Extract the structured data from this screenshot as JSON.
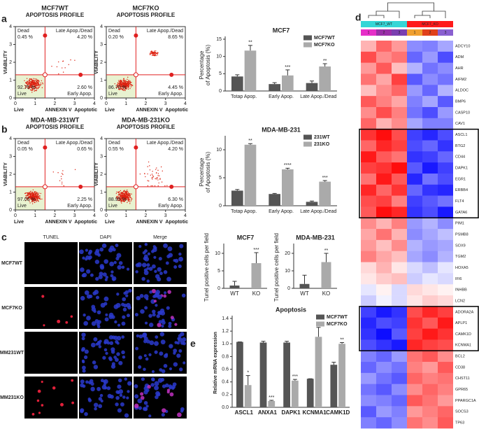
{
  "panel_letters": {
    "a": "a",
    "b": "b",
    "c": "c",
    "d": "d",
    "e": "e"
  },
  "flow_common": {
    "subtitle": "APOPTOSIS PROFILE",
    "y_label": "VIABILITY",
    "x_label": "ANNEXIN V",
    "x_left": "Live",
    "x_right": "Apoptotic",
    "dead": "Dead",
    "late": "Late Apop./Dead",
    "live": "Live",
    "early": "Early Apop.",
    "xticks": [
      0,
      1,
      2,
      3,
      4
    ],
    "yticks": [
      0,
      1,
      2,
      3,
      4
    ]
  },
  "flow_plots": [
    {
      "title": "MCF7WT",
      "dead": "0.45 %",
      "late": "4.20 %",
      "live": "92.75 %",
      "early": "2.60 %"
    },
    {
      "title": "MCF7KO",
      "dead": "0.20 %",
      "late": "8.65 %",
      "live": "86.70 %",
      "early": "4.45 %"
    },
    {
      "title": "MDA-MB-231WT",
      "dead": "0.05 %",
      "late": "0.65 %",
      "live": "97.05 %",
      "early": "2.25 %"
    },
    {
      "title": "MDA-MB-231KO",
      "dead": "0.55 %",
      "late": "4.20 %",
      "live": "88.95 %",
      "early": "6.30 %"
    }
  ],
  "microscopy": {
    "columns": [
      "TUNEL",
      "DAPI",
      "Merge"
    ],
    "rows": [
      "MCF7WT",
      "MCF7KO",
      "MM231WT",
      "MM231KO"
    ]
  },
  "chart_data": [
    {
      "type": "bar",
      "title": "MCF7",
      "y_label": [
        "Percentage",
        "of Apoptosis (%)"
      ],
      "categories": [
        "Totap Apop.",
        "Early Apop.",
        "Late Apop./Dead"
      ],
      "series": [
        {
          "name": "MCF7WT",
          "color": "#555555",
          "values": [
            4.2,
            2.0,
            2.3
          ],
          "errors": [
            0.5,
            0.4,
            0.6
          ]
        },
        {
          "name": "MCF7KO",
          "color": "#aaaaaa",
          "values": [
            11.7,
            4.5,
            7.1
          ],
          "errors": [
            1.5,
            1.6,
            0.8
          ],
          "significance": [
            "**",
            "***",
            "**"
          ]
        }
      ],
      "ylim": [
        0,
        15
      ],
      "yticks": [
        0,
        5,
        10,
        15
      ],
      "legend": "upper right"
    },
    {
      "type": "bar",
      "title": "MDA-MB-231",
      "y_label": [
        "Percentage",
        "of Apoptosis (%)"
      ],
      "categories": [
        "Totap Apop.",
        "Early Apop.",
        "Late Apop./Dead"
      ],
      "series": [
        {
          "name": "231WT",
          "color": "#555555",
          "values": [
            2.7,
            2.1,
            0.7
          ],
          "errors": [
            0.2,
            0.1,
            0.15
          ]
        },
        {
          "name": "231KO",
          "color": "#aaaaaa",
          "values": [
            10.9,
            6.5,
            4.3
          ],
          "errors": [
            0.2,
            0.2,
            0.2
          ],
          "significance": [
            "**",
            "****",
            "***"
          ]
        }
      ],
      "ylim": [
        0,
        12
      ],
      "yticks": [
        0,
        5,
        10
      ],
      "legend": "upper right"
    },
    {
      "type": "bar",
      "title": "MCF7",
      "y_label": [
        "Tunel positive cells per field"
      ],
      "categories": [
        "WT",
        "KO"
      ],
      "values": [
        0.8,
        7.2
      ],
      "errors": [
        1.2,
        3.0
      ],
      "colors": [
        "#555555",
        "#aaaaaa"
      ],
      "significance": "***",
      "ylim": [
        0,
        12
      ],
      "yticks": [
        0,
        5,
        10
      ]
    },
    {
      "type": "bar",
      "title": "MDA-MB-231",
      "y_label": [
        "Tunel positive cells per field"
      ],
      "categories": [
        "WT",
        "KO"
      ],
      "values": [
        2.5,
        15
      ],
      "errors": [
        5,
        5
      ],
      "colors": [
        "#555555",
        "#aaaaaa"
      ],
      "significance": "**",
      "ylim": [
        0,
        24
      ],
      "yticks": [
        0,
        10,
        20
      ]
    },
    {
      "type": "bar",
      "title": "Apoptosis",
      "y_label": [
        "Relative mRNA expression"
      ],
      "categories": [
        "ASCL1",
        "ANXA1",
        "DAPK1",
        "KCNMA1",
        "CAMK1D"
      ],
      "series": [
        {
          "name": "MCF7WT",
          "color": "#555555",
          "values": [
            1.03,
            1.02,
            1.02,
            0.45,
            0.67
          ],
          "errors": [
            0.0,
            0.02,
            0.02,
            0.0,
            0.04
          ]
        },
        {
          "name": "MCF7KO",
          "color": "#aaaaaa",
          "values": [
            0.35,
            0.1,
            0.42,
            1.11,
            1.0
          ],
          "errors": [
            0.15,
            0.01,
            0.02,
            0.15,
            0.02
          ],
          "significance": [
            "*",
            "***",
            "***",
            "*",
            "**"
          ]
        }
      ],
      "ylim": [
        0,
        1.4
      ],
      "yticks": [
        {
          "value": 0,
          "label": "0.0"
        },
        0.2,
        0.4,
        0.6,
        0.8,
        {
          "value": 1,
          "label": "1.0"
        },
        1.2,
        1.4
      ],
      "legend": "upper right"
    },
    {
      "type": "heatmap",
      "groups": [
        "MCF7_WT",
        "MCF7_KO"
      ],
      "columns": [
        "1",
        "2",
        "3",
        "1",
        "2",
        "3"
      ],
      "rows": [
        "ADCY10",
        "ADM",
        "AHR",
        "AIFM2",
        "ALDOC",
        "BMP6",
        "CASP10",
        "CAV1",
        "ASCL1",
        "BTG2",
        "CD44",
        "DAPK1",
        "EGR1",
        "ERBB4",
        "FLT4",
        "GATA6",
        "PIM1",
        "PSMB8",
        "SOX9",
        "TGM2",
        "HOXA5",
        "IFI6",
        "INHBB",
        "LCN2",
        "ADORA2A",
        "APLP1",
        "CAMK1D",
        "KCNMA1",
        "BCL2",
        "CD38",
        "CHST11",
        "GPR65",
        "PPARGC1A",
        "SOCS3",
        "TP63"
      ],
      "values": [
        [
          0.6,
          1.2,
          0.8,
          -0.9,
          -1.0,
          -0.7
        ],
        [
          1.4,
          0.9,
          1.1,
          -1.2,
          -0.8,
          -1.4
        ],
        [
          0.8,
          1.3,
          0.5,
          -0.6,
          -1.1,
          -0.9
        ],
        [
          1.1,
          0.7,
          1.5,
          -1.3,
          -0.9,
          -1.1
        ],
        [
          0.5,
          0.9,
          1.2,
          -0.8,
          -1.2,
          -0.6
        ],
        [
          1.3,
          1.0,
          0.7,
          -1.0,
          -0.7,
          -1.3
        ],
        [
          0.9,
          1.4,
          1.0,
          -1.1,
          -1.4,
          -0.8
        ],
        [
          1.2,
          0.6,
          0.9,
          -0.7,
          -1.0,
          -1.0
        ],
        [
          1.6,
          1.9,
          1.4,
          -1.5,
          -1.7,
          -1.4
        ],
        [
          1.2,
          1.7,
          1.5,
          -1.4,
          -1.2,
          -1.6
        ],
        [
          1.8,
          1.3,
          1.1,
          -1.6,
          -1.5,
          -1.2
        ],
        [
          1.5,
          1.6,
          1.9,
          -1.3,
          -1.8,
          -1.5
        ],
        [
          1.1,
          1.8,
          1.3,
          -1.7,
          -1.1,
          -1.4
        ],
        [
          1.7,
          1.2,
          1.6,
          -1.2,
          -1.6,
          -1.7
        ],
        [
          1.4,
          1.5,
          1.0,
          -1.5,
          -1.3,
          -1.1
        ],
        [
          1.3,
          1.9,
          1.7,
          -1.6,
          -1.4,
          -1.8
        ],
        [
          0.9,
          0.6,
          1.0,
          -0.8,
          -0.6,
          -0.9
        ],
        [
          0.7,
          1.1,
          0.6,
          -0.9,
          -0.7,
          -0.5
        ],
        [
          0.8,
          0.5,
          0.9,
          -0.6,
          -0.8,
          -0.7
        ],
        [
          1.0,
          0.7,
          0.5,
          -0.7,
          -0.9,
          -0.6
        ],
        [
          0.3,
          0.6,
          0.2,
          -0.3,
          -0.5,
          -0.2
        ],
        [
          0.2,
          0.4,
          0.5,
          -0.4,
          -0.2,
          -0.3
        ],
        [
          -0.2,
          0.1,
          -0.3,
          0.3,
          0.2,
          0.1
        ],
        [
          -0.4,
          -0.1,
          -0.3,
          0.2,
          0.4,
          0.3
        ],
        [
          -1.5,
          -1.8,
          -1.6,
          1.4,
          1.7,
          1.5
        ],
        [
          -1.7,
          -1.4,
          -1.5,
          1.6,
          1.3,
          1.8
        ],
        [
          -1.6,
          -1.9,
          -1.3,
          1.5,
          1.8,
          1.6
        ],
        [
          -1.4,
          -1.6,
          -1.8,
          1.7,
          1.5,
          1.4
        ],
        [
          -1.0,
          -1.2,
          -0.8,
          1.1,
          1.3,
          0.9
        ],
        [
          -1.2,
          -0.9,
          -1.1,
          1.0,
          0.8,
          1.3
        ],
        [
          -0.8,
          -1.1,
          -1.3,
          1.2,
          1.0,
          1.1
        ],
        [
          -1.1,
          -1.3,
          -0.9,
          0.9,
          1.2,
          1.0
        ],
        [
          -0.9,
          -1.0,
          -1.2,
          1.3,
          1.1,
          0.8
        ],
        [
          -1.3,
          -0.8,
          -1.0,
          0.8,
          1.0,
          1.2
        ],
        [
          -1.0,
          -1.2,
          -0.9,
          1.1,
          0.9,
          1.3
        ]
      ],
      "boxes": [
        [
          8,
          15
        ],
        [
          24,
          27
        ]
      ],
      "group_colors": [
        "#35d6d6",
        "#ff1a1a"
      ],
      "column_colors": [
        "#e62fc8",
        "#9a2fa8",
        "#7a3fb0",
        "#f0a030",
        "#e0401a",
        "#8a60d0"
      ]
    }
  ]
}
